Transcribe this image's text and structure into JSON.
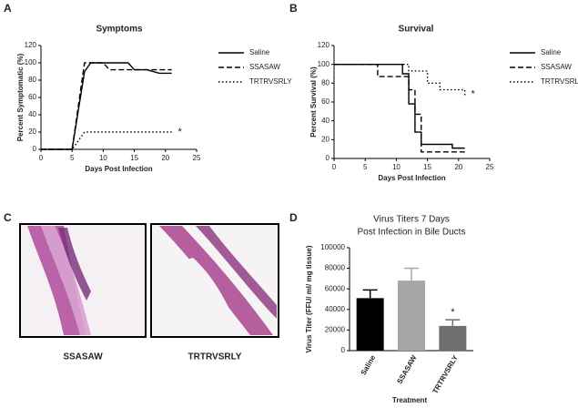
{
  "panel_labels": [
    "A",
    "B",
    "C",
    "D"
  ],
  "chart_data": [
    {
      "type": "line",
      "title": "Symptoms",
      "xlabel": "Days Post Infection",
      "ylabel": "Percent Symptomatic (%)",
      "x": [
        0,
        5,
        7,
        8,
        10,
        11,
        14,
        15,
        17,
        19,
        21
      ],
      "xlim": [
        0,
        25
      ],
      "xticks": [
        0,
        5,
        10,
        15,
        20,
        25
      ],
      "ylim": [
        0,
        120
      ],
      "yticks": [
        0,
        20,
        40,
        60,
        80,
        100,
        120
      ],
      "drawstyle": "linear",
      "series": [
        {
          "name": "Saline",
          "color": "#000000",
          "linestyle": "solid",
          "values": [
            0,
            0,
            90,
            100,
            100,
            100,
            100,
            92,
            92,
            88,
            88
          ]
        },
        {
          "name": "SSASAW",
          "color": "#000000",
          "linestyle": "dashed",
          "values": [
            0,
            0,
            100,
            100,
            100,
            92,
            92,
            92,
            92,
            92,
            92
          ]
        },
        {
          "name": "TRTRVSRLY",
          "color": "#000000",
          "linestyle": "dotted",
          "values": [
            0,
            0,
            20,
            20,
            20,
            20,
            20,
            20,
            20,
            20,
            20
          ]
        }
      ],
      "annotations": [
        {
          "text": "*",
          "x": 22,
          "y": 20
        }
      ]
    },
    {
      "type": "line",
      "title": "Survival",
      "xlabel": "Days Post Infection",
      "ylabel": "Percent Survival (%)",
      "x": [
        0,
        7,
        11,
        12,
        13,
        14,
        15,
        17,
        19,
        21
      ],
      "xlim": [
        0,
        25
      ],
      "xticks": [
        0,
        5,
        10,
        15,
        20,
        25
      ],
      "ylim": [
        0,
        120
      ],
      "yticks": [
        0,
        20,
        40,
        60,
        80,
        100,
        120
      ],
      "drawstyle": "steps-post",
      "series": [
        {
          "name": "Saline",
          "color": "#000000",
          "linestyle": "solid",
          "values": [
            100,
            100,
            90,
            58,
            28,
            15,
            15,
            15,
            11,
            11
          ]
        },
        {
          "name": "SSASAW",
          "color": "#000000",
          "linestyle": "dashed",
          "values": [
            100,
            87,
            87,
            73,
            47,
            7,
            7,
            7,
            7,
            7
          ]
        },
        {
          "name": "TRTRVSRLY",
          "color": "#000000",
          "linestyle": "dotted",
          "values": [
            100,
            100,
            100,
            93,
            93,
            93,
            80,
            73,
            73,
            67
          ]
        }
      ],
      "annotations": [
        {
          "text": "*",
          "x": 22,
          "y": 68
        }
      ]
    },
    {
      "type": "bar",
      "title": [
        "Virus Titers 7 Days",
        "Post Infection in Bile Ducts"
      ],
      "xlabel": "Treatment",
      "ylabel": "Virus Titer (FFU/ ml/ mg tissue)",
      "categories": [
        "Saline",
        "SSASAW",
        "TRTRVSRLY"
      ],
      "values": [
        51000,
        68000,
        24000
      ],
      "errors": [
        8000,
        12000,
        6000
      ],
      "colors": [
        "#000000",
        "#a6a6a6",
        "#6e6e6e"
      ],
      "ylim": [
        0,
        100000
      ],
      "yticks": [
        0,
        20000,
        40000,
        60000,
        80000,
        100000
      ],
      "annotations": [
        {
          "text": "*",
          "category": 2
        }
      ]
    }
  ],
  "panel_c": {
    "captions": [
      "SSASAW",
      "TRTRVSRLY"
    ]
  }
}
